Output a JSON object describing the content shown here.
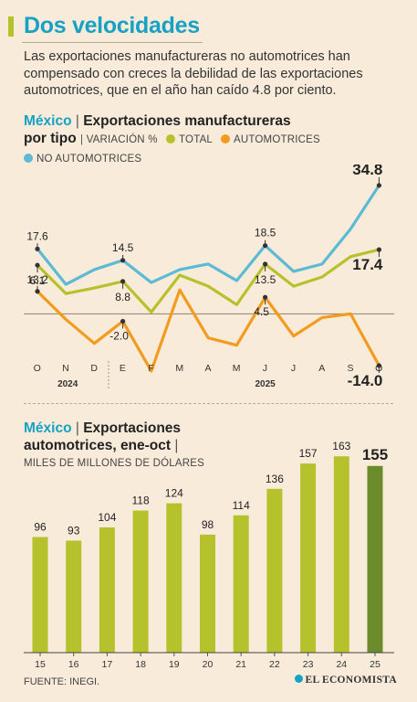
{
  "header": {
    "title": "Dos velocidades",
    "intro": "Las exportaciones manufactureras no automotrices han compensado con creces la debilidad de las exportaciones automotrices, que en el año han caído 4.8 por ciento."
  },
  "chart1": {
    "country": "México",
    "title_line1": "Exportaciones manufactureras",
    "title_line2": "por tipo",
    "legend_unit": "VARIACIÓN %"
  },
  "chart2": {
    "country": "México",
    "title_line1": "Exportaciones",
    "title_line2": "automotrices, ene-oct",
    "units": "MILES DE MILLONES DE DÓLARES"
  },
  "footer": {
    "source": "FUENTE: INEGI.",
    "brand": "EL ECONOMISTA"
  },
  "colors": {
    "no_auto": "#5bbad4",
    "total": "#b6c22b",
    "auto": "#f39b1f",
    "bar": "#b6c22b",
    "bar_highlight": "#6c8c2c",
    "title": "#17a1c5"
  },
  "chart_data": [
    {
      "type": "line",
      "title": "Exportaciones manufactureras por tipo",
      "ylabel": "VARIACIÓN %",
      "categories": [
        "O",
        "N",
        "D",
        "E",
        "F",
        "M",
        "A",
        "M",
        "J",
        "J",
        "A",
        "S",
        "O"
      ],
      "year_labels": [
        {
          "label": "2024",
          "index": 1
        },
        {
          "label": "2025",
          "index": 8
        }
      ],
      "ylim": [
        -16,
        36
      ],
      "series": [
        {
          "name": "NO AUTOMOTRICES",
          "color": "#5bbad4",
          "values": [
            17.6,
            8.0,
            12.0,
            14.5,
            8.5,
            12.0,
            13.5,
            9.0,
            18.5,
            11.5,
            13.5,
            23.0,
            34.8
          ]
        },
        {
          "name": "TOTAL",
          "color": "#b6c22b",
          "values": [
            13.2,
            5.5,
            7.0,
            8.8,
            0.5,
            10.5,
            7.5,
            2.5,
            13.5,
            7.5,
            10.0,
            15.5,
            17.4
          ]
        },
        {
          "name": "AUTOMOTRICES",
          "color": "#f39b1f",
          "values": [
            6.1,
            -1.5,
            -8.0,
            -2.0,
            -15.5,
            6.5,
            -6.5,
            -8.5,
            4.5,
            -6.0,
            -1.0,
            0.0,
            -14.0
          ]
        }
      ],
      "labels": [
        {
          "series": 0,
          "index": 0,
          "text": "17.6"
        },
        {
          "series": 0,
          "index": 3,
          "text": "14.5"
        },
        {
          "series": 0,
          "index": 8,
          "text": "18.5"
        },
        {
          "series": 0,
          "index": 12,
          "text": "34.8"
        },
        {
          "series": 1,
          "index": 0,
          "text": "13.2"
        },
        {
          "series": 1,
          "index": 3,
          "text": "8.8"
        },
        {
          "series": 1,
          "index": 8,
          "text": "13.5"
        },
        {
          "series": 1,
          "index": 12,
          "text": "17.4"
        },
        {
          "series": 2,
          "index": 0,
          "text": "6.1"
        },
        {
          "series": 2,
          "index": 3,
          "text": "-2.0"
        },
        {
          "series": 2,
          "index": 8,
          "text": "4.5"
        },
        {
          "series": 2,
          "index": 12,
          "text": "-14.0"
        }
      ]
    },
    {
      "type": "bar",
      "title": "Exportaciones automotrices, ene-oct",
      "ylabel": "MILES DE MILLONES DE DÓLARES",
      "categories": [
        "15",
        "16",
        "17",
        "18",
        "19",
        "20",
        "21",
        "22",
        "23",
        "24",
        "25"
      ],
      "values": [
        96,
        93,
        104,
        118,
        124,
        98,
        114,
        136,
        157,
        163,
        155
      ],
      "highlight_index": 10,
      "ylim": [
        0,
        170
      ]
    }
  ]
}
